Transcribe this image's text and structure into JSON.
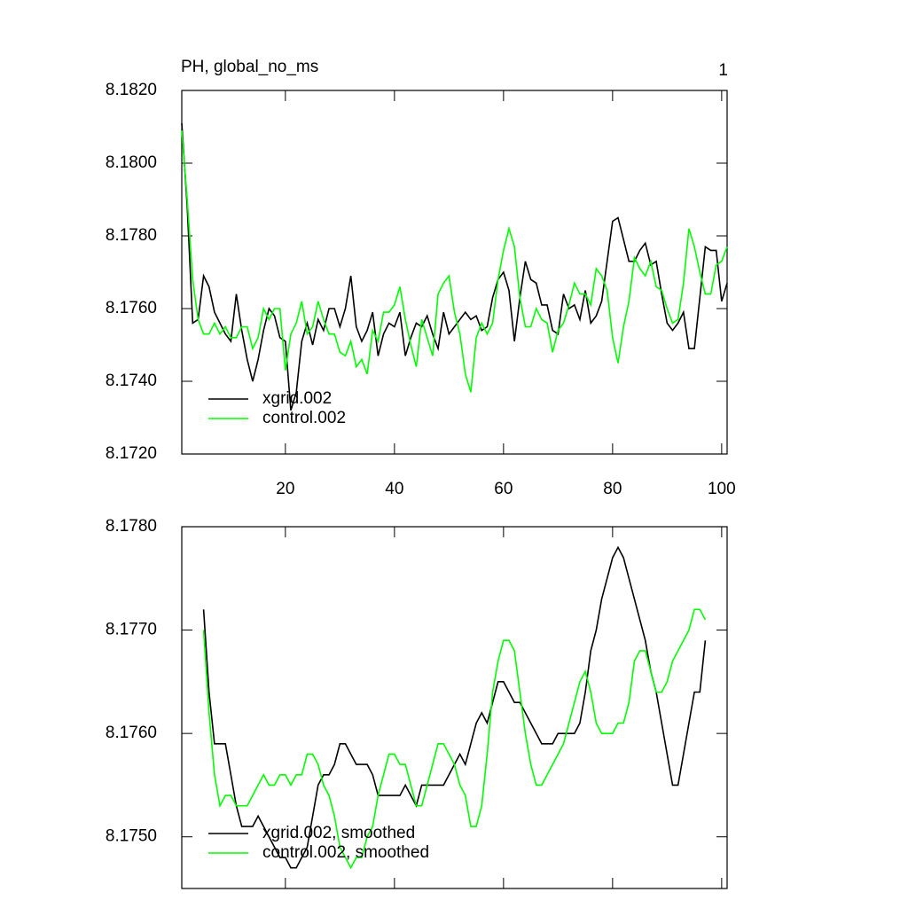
{
  "chart_data": [
    {
      "type": "line",
      "title": "PH, global_no_ms",
      "annotation": "1",
      "x": [
        1,
        2,
        3,
        4,
        5,
        6,
        7,
        8,
        9,
        10,
        11,
        12,
        13,
        14,
        15,
        16,
        17,
        18,
        19,
        20,
        21,
        22,
        23,
        24,
        25,
        26,
        27,
        28,
        29,
        30,
        31,
        32,
        33,
        34,
        35,
        36,
        37,
        38,
        39,
        40,
        41,
        42,
        43,
        44,
        45,
        46,
        47,
        48,
        49,
        50,
        51,
        52,
        53,
        54,
        55,
        56,
        57,
        58,
        59,
        60,
        61,
        62,
        63,
        64,
        65,
        66,
        67,
        68,
        69,
        70,
        71,
        72,
        73,
        74,
        75,
        76,
        77,
        78,
        79,
        80,
        81,
        82,
        83,
        84,
        85,
        86,
        87,
        88,
        89,
        90,
        91,
        92,
        93,
        94,
        95,
        96,
        97,
        98,
        99,
        100,
        101
      ],
      "series": [
        {
          "name": "xgrid.002",
          "color": "#000000",
          "values": [
            8.1811,
            8.1788,
            8.1756,
            8.1757,
            8.1769,
            8.1766,
            8.1759,
            8.1756,
            8.1753,
            8.1751,
            8.1764,
            8.1754,
            8.1746,
            8.174,
            8.1746,
            8.1754,
            8.176,
            8.1758,
            8.1752,
            8.1751,
            8.1732,
            8.1737,
            8.1751,
            8.1756,
            8.175,
            8.1757,
            8.1754,
            8.176,
            8.176,
            8.1755,
            8.176,
            8.1769,
            8.1755,
            8.1751,
            8.1754,
            8.1759,
            8.1747,
            8.1753,
            8.1756,
            8.1755,
            8.1759,
            8.1747,
            8.1752,
            8.1756,
            8.1755,
            8.1758,
            8.1753,
            8.1749,
            8.1759,
            8.1753,
            8.1755,
            8.1757,
            8.1759,
            8.1757,
            8.1758,
            8.1754,
            8.1755,
            8.1763,
            8.1768,
            8.177,
            8.1765,
            8.1751,
            8.1763,
            8.1773,
            8.1768,
            8.1767,
            8.1761,
            8.1761,
            8.1754,
            8.1753,
            8.1764,
            8.176,
            8.1761,
            8.1757,
            8.1765,
            8.1756,
            8.1758,
            8.1762,
            8.1773,
            8.1784,
            8.1785,
            8.1779,
            8.1773,
            8.1773,
            8.1776,
            8.1778,
            8.1772,
            8.1773,
            8.1764,
            8.1756,
            8.1754,
            8.1756,
            8.1759,
            8.1749,
            8.1749,
            8.1763,
            8.1777,
            8.1776,
            8.1776,
            8.1762,
            8.1767
          ]
        },
        {
          "name": "control.002",
          "color": "#00ff00",
          "values": [
            8.1809,
            8.179,
            8.1768,
            8.1757,
            8.1753,
            8.1753,
            8.1756,
            8.1753,
            8.1755,
            8.1752,
            8.1752,
            8.1755,
            8.1755,
            8.1749,
            8.1752,
            8.176,
            8.1757,
            8.176,
            8.176,
            8.1743,
            8.1753,
            8.1756,
            8.1762,
            8.1753,
            8.1755,
            8.1762,
            8.1757,
            8.1753,
            8.1753,
            8.1748,
            8.1747,
            8.1751,
            8.1744,
            8.1746,
            8.1742,
            8.1754,
            8.1751,
            8.1759,
            8.1759,
            8.1761,
            8.1766,
            8.1757,
            8.175,
            8.1744,
            8.1757,
            8.1752,
            8.1747,
            8.1764,
            8.1767,
            8.1769,
            8.1759,
            8.1753,
            8.1742,
            8.1737,
            8.1752,
            8.1756,
            8.1753,
            8.1756,
            8.1768,
            8.1776,
            8.1782,
            8.1777,
            8.1763,
            8.1755,
            8.1755,
            8.176,
            8.1757,
            8.1756,
            8.1748,
            8.1754,
            8.1756,
            8.1761,
            8.1767,
            8.1764,
            8.1764,
            8.1761,
            8.1771,
            8.1769,
            8.1765,
            8.1752,
            8.1745,
            8.1755,
            8.1762,
            8.1774,
            8.1771,
            8.1769,
            8.1773,
            8.1766,
            8.1765,
            8.176,
            8.1756,
            8.1757,
            8.1767,
            8.1782,
            8.1777,
            8.177,
            8.1764,
            8.1764,
            8.1772,
            8.1773,
            8.1777
          ]
        }
      ],
      "xlim": [
        1,
        101
      ],
      "xticks": [
        20,
        40,
        60,
        80,
        100
      ],
      "ylim": [
        8.172,
        8.182
      ],
      "yticks": [
        {
          "value": 8.172,
          "label": "8.1720"
        },
        {
          "value": 8.174,
          "label": "8.1740"
        },
        {
          "value": 8.176,
          "label": "8.1760"
        },
        {
          "value": 8.178,
          "label": "8.1780"
        },
        {
          "value": 8.18,
          "label": "8.1800"
        },
        {
          "value": 8.182,
          "label": "8.1820"
        }
      ],
      "legend": "lower left"
    },
    {
      "type": "line",
      "x": [
        5,
        6,
        7,
        8,
        9,
        10,
        11,
        12,
        13,
        14,
        15,
        16,
        17,
        18,
        19,
        20,
        21,
        22,
        23,
        24,
        25,
        26,
        27,
        28,
        29,
        30,
        31,
        32,
        33,
        34,
        35,
        36,
        37,
        38,
        39,
        40,
        41,
        42,
        43,
        44,
        45,
        46,
        47,
        48,
        49,
        50,
        51,
        52,
        53,
        54,
        55,
        56,
        57,
        58,
        59,
        60,
        61,
        62,
        63,
        64,
        65,
        66,
        67,
        68,
        69,
        70,
        71,
        72,
        73,
        74,
        75,
        76,
        77,
        78,
        79,
        80,
        81,
        82,
        83,
        84,
        85,
        86,
        87,
        88,
        89,
        90,
        91,
        92,
        93,
        94,
        95,
        96,
        97
      ],
      "series": [
        {
          "name": "xgrid.002, smoothed",
          "color": "#000000",
          "values": [
            8.1772,
            8.1764,
            8.1759,
            8.1759,
            8.1759,
            8.1756,
            8.1753,
            8.1751,
            8.1751,
            8.1751,
            8.1752,
            8.1751,
            8.175,
            8.1749,
            8.1748,
            8.1748,
            8.1747,
            8.1747,
            8.1748,
            8.1749,
            8.1752,
            8.1755,
            8.1756,
            8.1756,
            8.1757,
            8.1759,
            8.1759,
            8.1758,
            8.1757,
            8.1757,
            8.1757,
            8.1756,
            8.1754,
            8.1754,
            8.1754,
            8.1754,
            8.1754,
            8.1755,
            8.1754,
            8.1753,
            8.1755,
            8.1755,
            8.1755,
            8.1755,
            8.1755,
            8.1756,
            8.1757,
            8.1758,
            8.1757,
            8.1759,
            8.1761,
            8.1762,
            8.1761,
            8.1763,
            8.1765,
            8.1765,
            8.1764,
            8.1763,
            8.1763,
            8.1762,
            8.1761,
            8.176,
            8.1759,
            8.1759,
            8.1759,
            8.176,
            8.176,
            8.176,
            8.176,
            8.1761,
            8.1764,
            8.1768,
            8.177,
            8.1773,
            8.1775,
            8.1777,
            8.1778,
            8.1777,
            8.1775,
            8.1773,
            8.1771,
            8.1769,
            8.1766,
            8.1764,
            8.1761,
            8.1758,
            8.1755,
            8.1755,
            8.1758,
            8.1761,
            8.1764,
            8.1764,
            8.1769
          ]
        },
        {
          "name": "control.002, smoothed",
          "color": "#00ff00",
          "values": [
            8.177,
            8.1762,
            8.1756,
            8.1753,
            8.1754,
            8.1754,
            8.1753,
            8.1753,
            8.1753,
            8.1754,
            8.1755,
            8.1756,
            8.1755,
            8.1755,
            8.1756,
            8.1756,
            8.1755,
            8.1756,
            8.1756,
            8.1758,
            8.1758,
            8.1757,
            8.1755,
            8.1754,
            8.1752,
            8.1749,
            8.1748,
            8.1747,
            8.1748,
            8.1748,
            8.175,
            8.1751,
            8.1754,
            8.1756,
            8.1758,
            8.1758,
            8.1757,
            8.1757,
            8.1755,
            8.1753,
            8.1753,
            8.1755,
            8.1757,
            8.1759,
            8.1759,
            8.1758,
            8.1757,
            8.1755,
            8.1754,
            8.1751,
            8.1751,
            8.1753,
            8.1758,
            8.1764,
            8.1767,
            8.1769,
            8.1769,
            8.1768,
            8.1764,
            8.176,
            8.1757,
            8.1755,
            8.1755,
            8.1756,
            8.1757,
            8.1758,
            8.1759,
            8.1761,
            8.1763,
            8.1765,
            8.1766,
            8.1764,
            8.1761,
            8.176,
            8.176,
            8.176,
            8.1761,
            8.1761,
            8.1763,
            8.1767,
            8.1768,
            8.1768,
            8.1766,
            8.1764,
            8.1764,
            8.1765,
            8.1767,
            8.1768,
            8.1769,
            8.177,
            8.1772,
            8.1772,
            8.1771
          ]
        }
      ],
      "xlim": [
        1,
        101
      ],
      "xticks": [
        20,
        40,
        60,
        80,
        100
      ],
      "xtick_labels": false,
      "ylim": [
        8.1745,
        8.178
      ],
      "yticks": [
        {
          "value": 8.175,
          "label": "8.1750"
        },
        {
          "value": 8.176,
          "label": "8.1760"
        },
        {
          "value": 8.177,
          "label": "8.1770"
        },
        {
          "value": 8.178,
          "label": "8.1780"
        }
      ],
      "legend": "lower left"
    }
  ]
}
